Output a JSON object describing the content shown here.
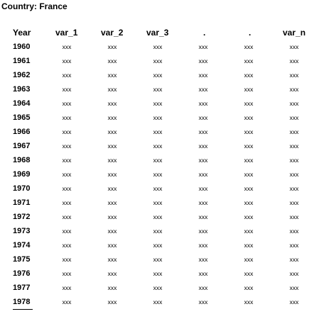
{
  "title": "Country: France",
  "table": {
    "headers": [
      "Year",
      "var_1",
      "var_2",
      "var_3",
      ".",
      ".",
      "var_n"
    ],
    "rows": [
      {
        "year": "1960",
        "values": [
          "xxx",
          "xxx",
          "xxx",
          "xxx",
          "xxx",
          "xxx"
        ]
      },
      {
        "year": "1961",
        "values": [
          "xxx",
          "xxx",
          "xxx",
          "xxx",
          "xxx",
          "xxx"
        ]
      },
      {
        "year": "1962",
        "values": [
          "xxx",
          "xxx",
          "xxx",
          "xxx",
          "xxx",
          "xxx"
        ]
      },
      {
        "year": "1963",
        "values": [
          "xxx",
          "xxx",
          "xxx",
          "xxx",
          "xxx",
          "xxx"
        ]
      },
      {
        "year": "1964",
        "values": [
          "xxx",
          "xxx",
          "xxx",
          "xxx",
          "xxx",
          "xxx"
        ]
      },
      {
        "year": "1965",
        "values": [
          "xxx",
          "xxx",
          "xxx",
          "xxx",
          "xxx",
          "xxx"
        ]
      },
      {
        "year": "1966",
        "values": [
          "xxx",
          "xxx",
          "xxx",
          "xxx",
          "xxx",
          "xxx"
        ]
      },
      {
        "year": "1967",
        "values": [
          "xxx",
          "xxx",
          "xxx",
          "xxx",
          "xxx",
          "xxx"
        ]
      },
      {
        "year": "1968",
        "values": [
          "xxx",
          "xxx",
          "xxx",
          "xxx",
          "xxx",
          "xxx"
        ]
      },
      {
        "year": "1969",
        "values": [
          "xxx",
          "xxx",
          "xxx",
          "xxx",
          "xxx",
          "xxx"
        ]
      },
      {
        "year": "1970",
        "values": [
          "xxx",
          "xxx",
          "xxx",
          "xxx",
          "xxx",
          "xxx"
        ]
      },
      {
        "year": "1971",
        "values": [
          "xxx",
          "xxx",
          "xxx",
          "xxx",
          "xxx",
          "xxx"
        ]
      },
      {
        "year": "1972",
        "values": [
          "xxx",
          "xxx",
          "xxx",
          "xxx",
          "xxx",
          "xxx"
        ]
      },
      {
        "year": "1973",
        "values": [
          "xxx",
          "xxx",
          "xxx",
          "xxx",
          "xxx",
          "xxx"
        ]
      },
      {
        "year": "1974",
        "values": [
          "xxx",
          "xxx",
          "xxx",
          "xxx",
          "xxx",
          "xxx"
        ]
      },
      {
        "year": "1975",
        "values": [
          "xxx",
          "xxx",
          "xxx",
          "xxx",
          "xxx",
          "xxx"
        ]
      },
      {
        "year": "1976",
        "values": [
          "xxx",
          "xxx",
          "xxx",
          "xxx",
          "xxx",
          "xxx"
        ]
      },
      {
        "year": "1977",
        "values": [
          "xxx",
          "xxx",
          "xxx",
          "xxx",
          "xxx",
          "xxx"
        ]
      },
      {
        "year": "1978",
        "values": [
          "xxx",
          "xxx",
          "xxx",
          "xxx",
          "xxx",
          "xxx"
        ]
      }
    ]
  }
}
